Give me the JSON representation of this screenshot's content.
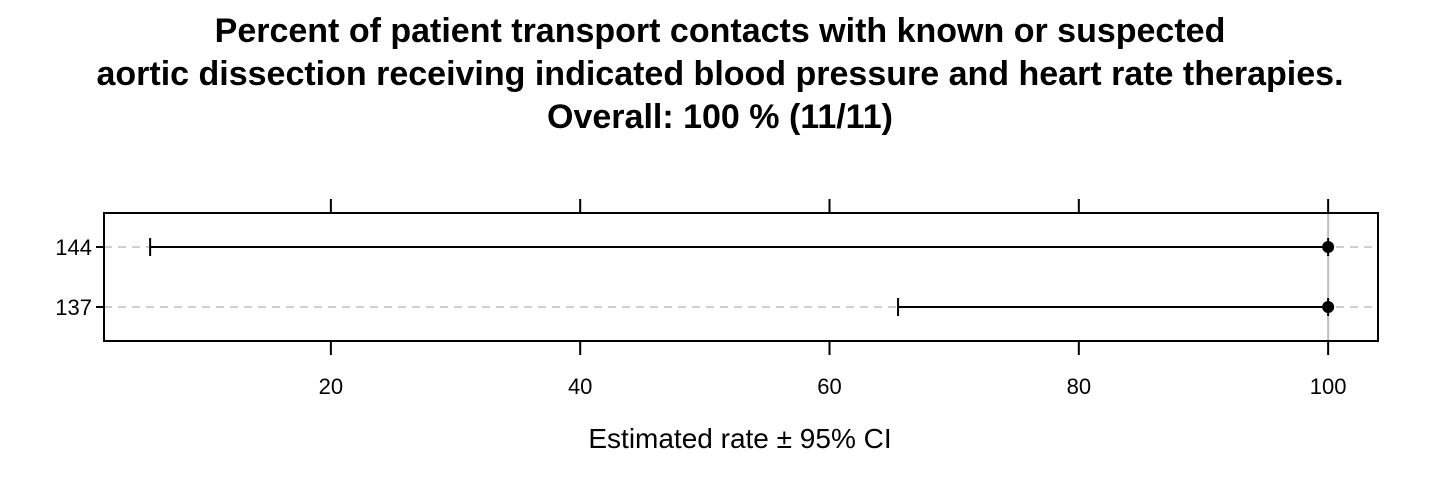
{
  "chart_data": {
    "type": "dotplot-ci",
    "title_lines": [
      "Percent of patient transport contacts with known or suspected",
      "aortic dissection receiving indicated blood pressure and heart rate therapies.",
      "Overall:  100 %  (11/11)"
    ],
    "xlabel": "Estimated rate ±  95% CI",
    "ylabel": "",
    "xlim": [
      1.8,
      104
    ],
    "x_ticks": [
      20,
      40,
      60,
      80,
      100
    ],
    "grid": "dashed horizontal lines at each category",
    "reference_line": 100,
    "categories": [
      "144",
      "137"
    ],
    "estimates": [
      100,
      100
    ],
    "ci_lower": [
      5.5,
      65.5
    ],
    "ci_upper": [
      100,
      100
    ],
    "colors": {
      "point": "#000000",
      "grid": "#bebebe",
      "reference": "#bebebe"
    }
  }
}
